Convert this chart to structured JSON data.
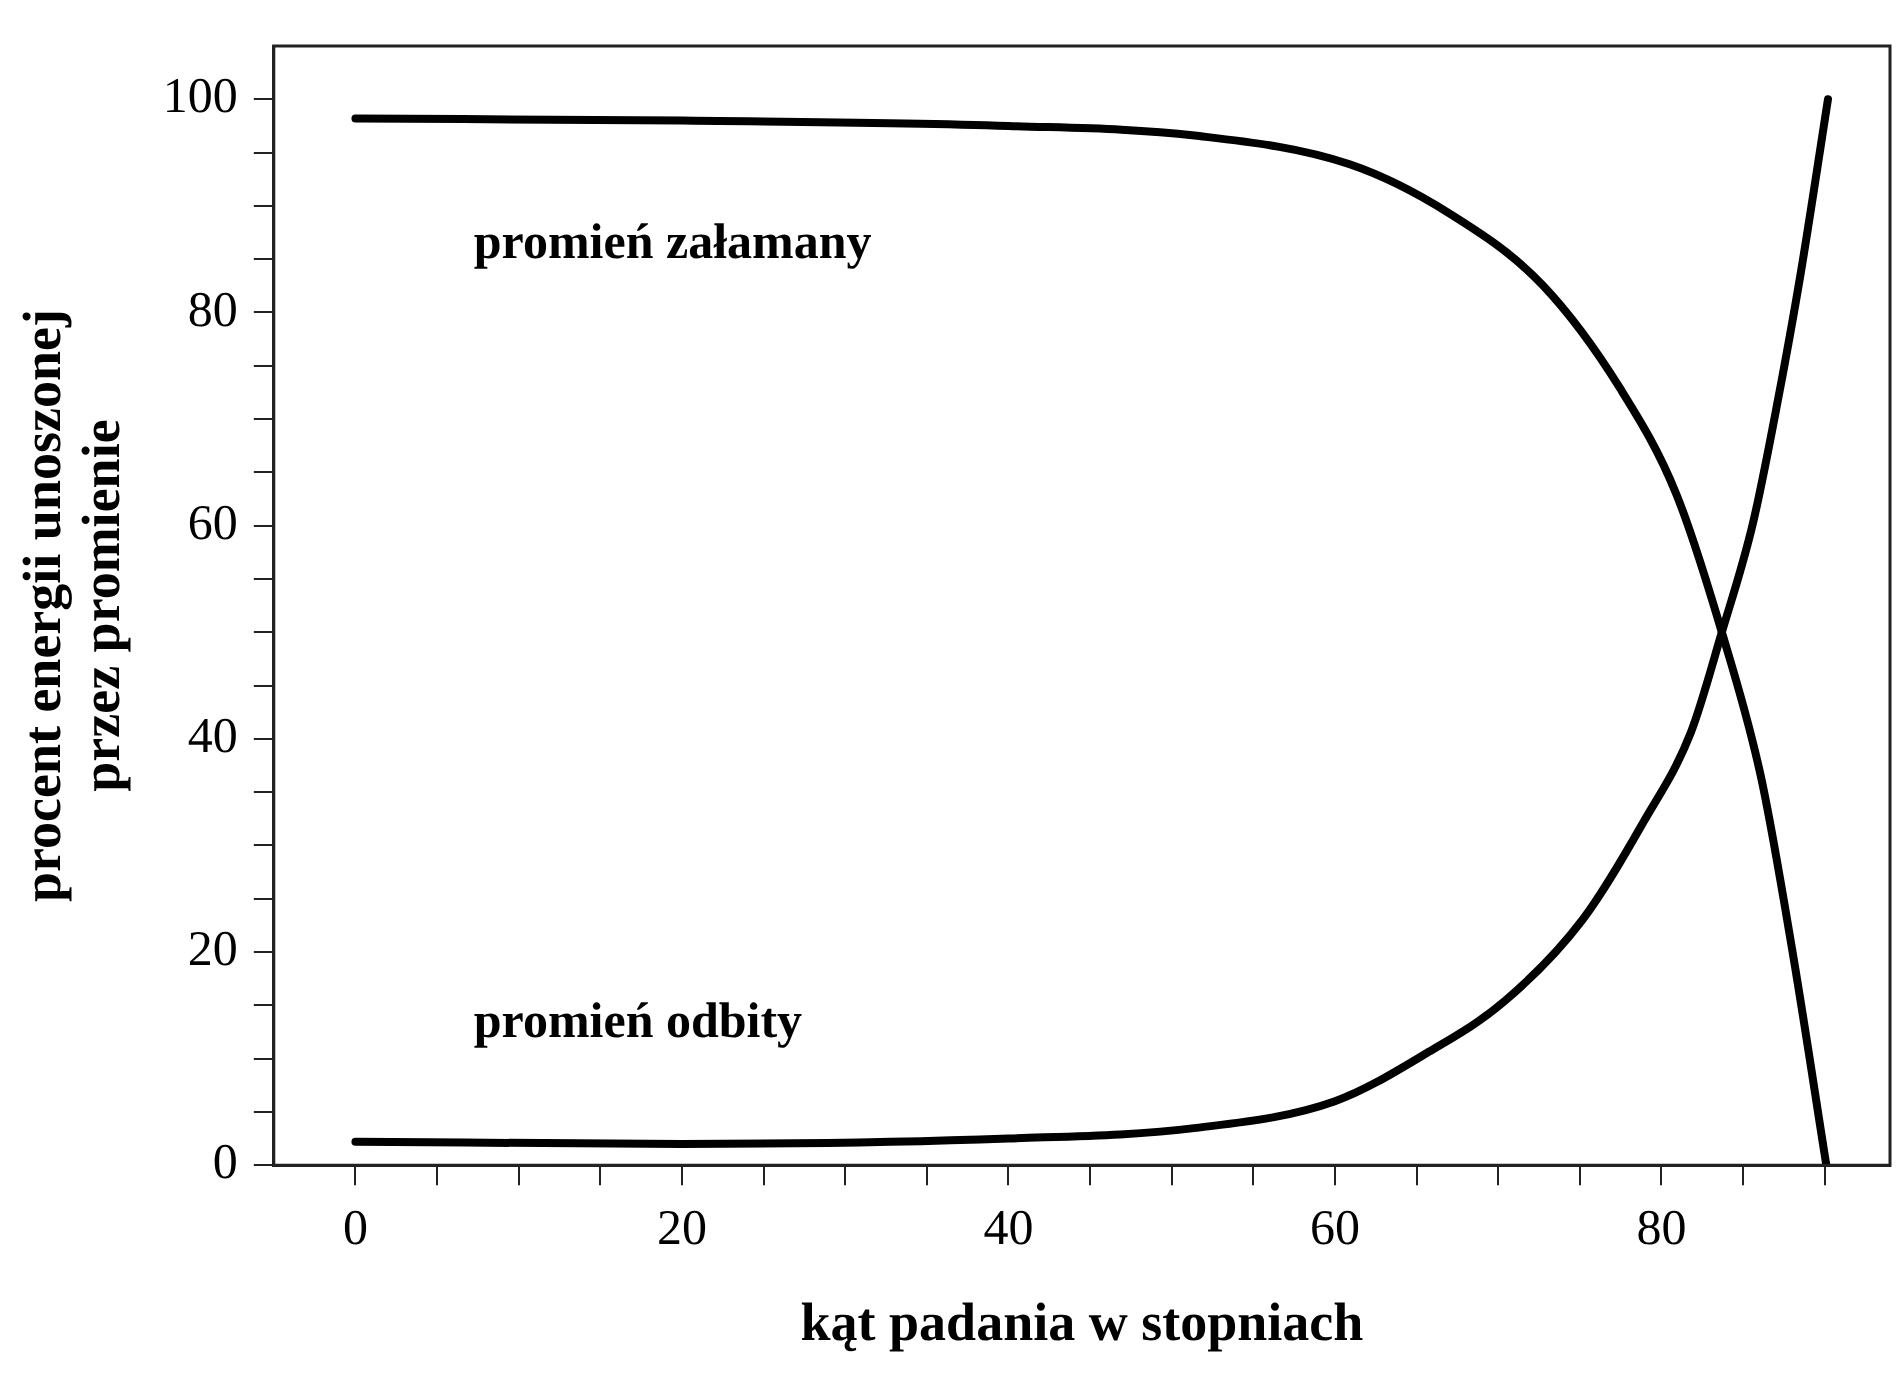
{
  "chart_data": {
    "type": "line",
    "xlabel": "kąt padania w stopniach",
    "ylabel": "procent energii unoszonej\nprzez promienie",
    "xlim": [
      -5,
      94
    ],
    "ylim": [
      0,
      105
    ],
    "xticks": [
      0,
      {
        "value": 5,
        "label": null
      },
      20,
      {
        "value": 10,
        "label": null
      },
      {
        "value": 15,
        "label": null
      },
      {
        "value": 25,
        "label": null
      },
      {
        "value": 30,
        "label": null
      },
      {
        "value": 35,
        "label": null
      },
      40,
      {
        "value": 45,
        "label": null
      },
      {
        "value": 50,
        "label": null
      },
      {
        "value": 55,
        "label": null
      },
      60,
      {
        "value": 65,
        "label": null
      },
      {
        "value": 70,
        "label": null
      },
      {
        "value": 75,
        "label": null
      },
      80,
      {
        "value": 85,
        "label": null
      },
      {
        "value": 90,
        "label": null
      }
    ],
    "yticks": [
      0,
      {
        "value": 5,
        "label": null
      },
      {
        "value": 10,
        "label": null
      },
      {
        "value": 15,
        "label": null
      },
      20,
      {
        "value": 25,
        "label": null
      },
      {
        "value": 30,
        "label": null
      },
      {
        "value": 35,
        "label": null
      },
      40,
      {
        "value": 45,
        "label": null
      },
      {
        "value": 50,
        "label": null
      },
      {
        "value": 55,
        "label": null
      },
      60,
      {
        "value": 65,
        "label": null
      },
      {
        "value": 70,
        "label": null
      },
      {
        "value": 75,
        "label": null
      },
      80,
      {
        "value": 85,
        "label": null
      },
      {
        "value": 90,
        "label": null
      },
      {
        "value": 95,
        "label": null
      },
      100
    ],
    "series": [
      {
        "name": "promień odbity",
        "color": "#000000",
        "x": [
          0,
          20,
          40,
          51.5,
          60,
          65.6,
          70.4,
          75.2,
          78.9,
          81.8,
          83.7,
          85.6,
          87.1,
          88.5,
          90.2
        ],
        "values": [
          2.2,
          2,
          2.5,
          3.5,
          6,
          10.5,
          15.4,
          23.1,
          32.2,
          40.6,
          50,
          60.2,
          71.5,
          83.4,
          100
        ]
      },
      {
        "name": "promień załamany",
        "color": "#000000",
        "x": [
          0,
          20,
          40,
          51.4,
          60.9,
          67,
          72.7,
          77.5,
          80.9,
          83.7,
          86.1,
          88,
          90.1
        ],
        "values": [
          98.2,
          98,
          97.5,
          96.6,
          93.9,
          89.3,
          82.6,
          72.8,
          63,
          50,
          36.4,
          20.3,
          0
        ]
      }
    ]
  }
}
